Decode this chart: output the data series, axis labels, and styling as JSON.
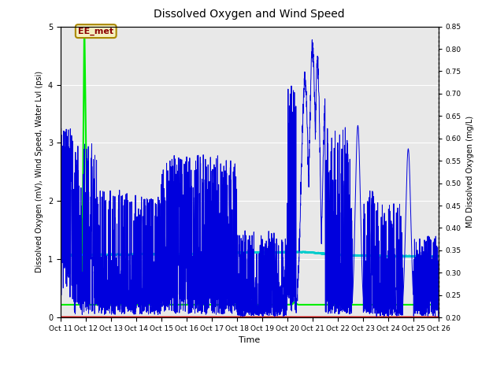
{
  "title": "Dissolved Oxygen and Wind Speed",
  "ylabel_left": "Dissolved Oxygen (mV), Wind Speed, Water Lvl (psi)",
  "ylabel_right": "MD Dissolved Oxygen (mg/L)",
  "xlabel": "Time",
  "ylim_left": [
    0.0,
    5.0
  ],
  "ylim_right": [
    0.2,
    0.85
  ],
  "x_tick_labels": [
    "Oct 11",
    "Oct 12",
    "Oct 13",
    "Oct 14",
    "Oct 15",
    "Oct 16",
    "Oct 17",
    "Oct 18",
    "Oct 19",
    "Oct 20",
    "Oct 21",
    "Oct 22",
    "Oct 23",
    "Oct 24",
    "Oct 25",
    "Oct 26"
  ],
  "annotation_text": "EE_met",
  "bg_color": "#e8e8e8",
  "grid_color": "#ffffff",
  "disoxy_color": "#cc0000",
  "ws_color": "#0000dd",
  "waterlevel_color": "#00cccc",
  "minidot_color": "#00ee00"
}
